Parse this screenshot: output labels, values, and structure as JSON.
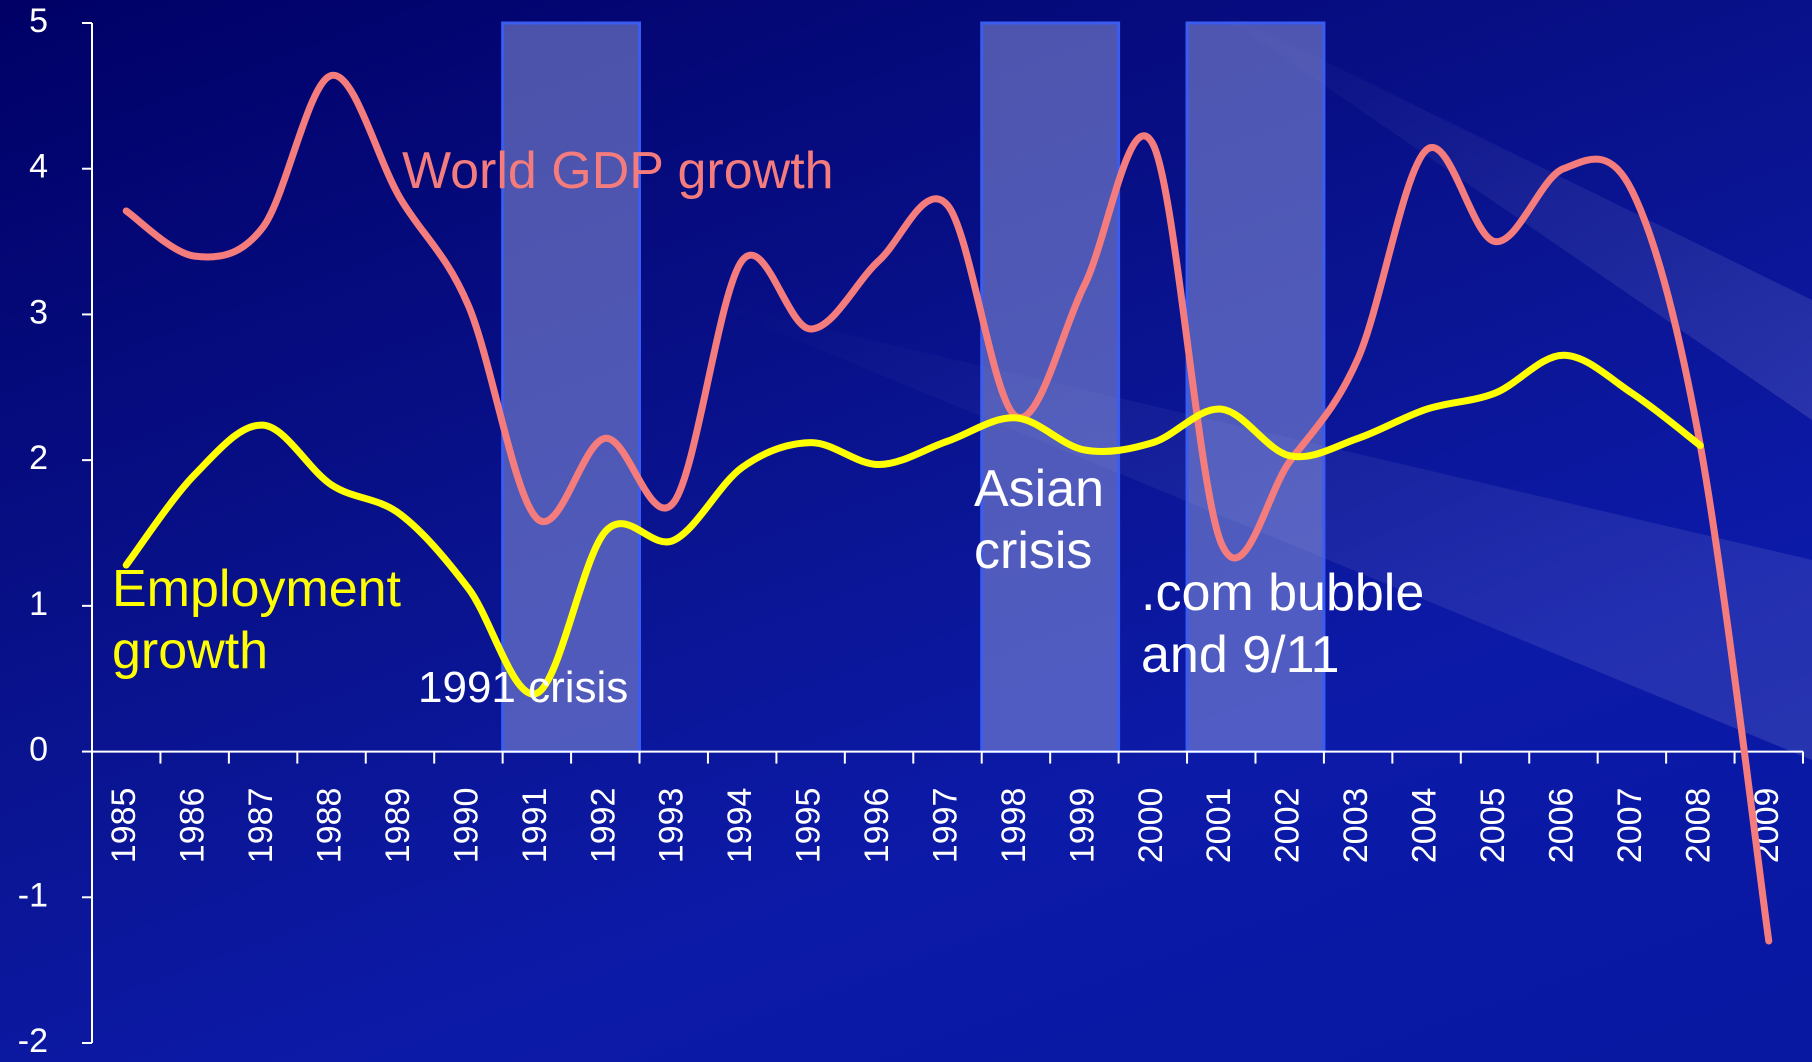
{
  "chart_data": {
    "type": "line",
    "categories": [
      "1985",
      "1986",
      "1987",
      "1988",
      "1989",
      "1990",
      "1991",
      "1992",
      "1993",
      "1994",
      "1995",
      "1996",
      "1997",
      "1998",
      "1999",
      "2000",
      "2001",
      "2002",
      "2003",
      "2004",
      "2005",
      "2006",
      "2007",
      "2008",
      "2009"
    ],
    "series": [
      {
        "name": "World GDP growth",
        "color": "#f47c7c",
        "values": [
          3.71,
          3.4,
          3.6,
          4.64,
          3.8,
          3.06,
          1.6,
          2.15,
          1.71,
          3.37,
          2.9,
          3.37,
          3.75,
          2.3,
          3.2,
          4.17,
          1.43,
          1.99,
          2.7,
          4.13,
          3.5,
          4.0,
          3.85,
          2.1,
          -1.3
        ]
      },
      {
        "name": "Employment growth",
        "color": "#ffff00",
        "values": [
          1.28,
          1.9,
          2.24,
          1.83,
          1.63,
          1.12,
          0.4,
          1.51,
          1.45,
          1.95,
          2.12,
          1.97,
          2.13,
          2.29,
          2.07,
          2.12,
          2.35,
          2.03,
          2.15,
          2.35,
          2.46,
          2.72,
          2.46,
          2.1,
          null
        ]
      }
    ],
    "ylim": [
      -2,
      5
    ],
    "yticks": [
      -2,
      -1,
      0,
      1,
      2,
      3,
      4,
      5
    ],
    "annotations": [
      {
        "label": "1991 crisis",
        "span": [
          "1991",
          "1992"
        ]
      },
      {
        "label": "Asian crisis",
        "span": [
          "1998",
          "1999"
        ]
      },
      {
        "label": ".com bubble and 9/11",
        "span": [
          "2001",
          "2002"
        ]
      }
    ]
  }
}
